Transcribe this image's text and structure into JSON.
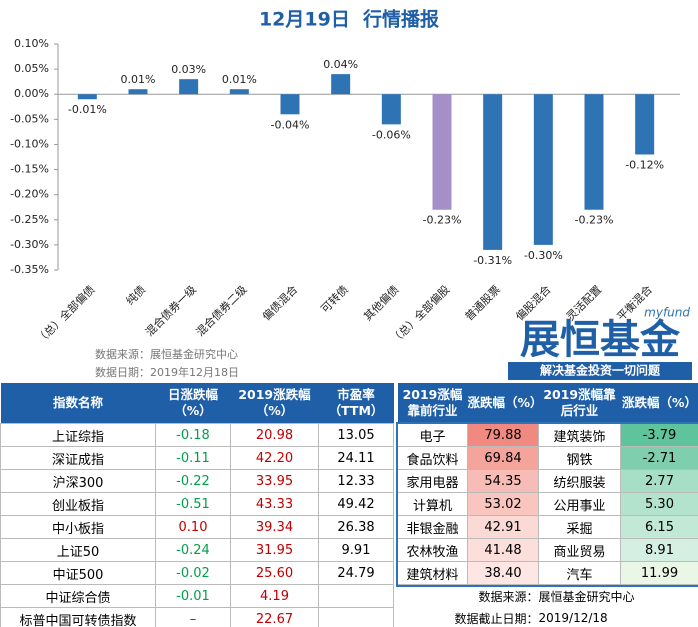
{
  "chart_data": {
    "type": "bar",
    "title": "12月19日  行情播报",
    "categories": [
      "（总）全部偏债",
      "纯债",
      "混合债券一级",
      "混合债券二级",
      "偏债混合",
      "可转债",
      "其他偏债",
      "（总）全部偏股",
      "普通股票",
      "偏股混合",
      "灵活配置",
      "平衡混合"
    ],
    "values": [
      -0.01,
      0.01,
      0.03,
      0.01,
      -0.04,
      0.04,
      -0.06,
      -0.23,
      -0.31,
      -0.3,
      -0.23,
      -0.12
    ],
    "value_labels": [
      "-0.01%",
      "0.01%",
      "0.03%",
      "0.01%",
      "-0.04%",
      "0.04%",
      "-0.06%",
      "-0.23%",
      "-0.31%",
      "-0.30%",
      "-0.23%",
      "-0.12%"
    ],
    "colors": [
      "#2e74b5",
      "#2e74b5",
      "#2e74b5",
      "#2e74b5",
      "#2e74b5",
      "#2e74b5",
      "#2e74b5",
      "#a48fc9",
      "#2e74b5",
      "#2e74b5",
      "#2e74b5",
      "#2e74b5"
    ],
    "ylim": [
      -0.35,
      0.1
    ],
    "yticks": [
      {
        "value": 0.1,
        "label": "0.10%"
      },
      {
        "value": 0.05,
        "label": "0.05%"
      },
      {
        "value": 0,
        "label": "0.00%"
      },
      {
        "value": -0.05,
        "label": "-0.05%"
      },
      {
        "value": -0.1,
        "label": "-0.10%"
      },
      {
        "value": -0.15,
        "label": "-0.15%"
      },
      {
        "value": -0.2,
        "label": "-0.20%"
      },
      {
        "value": -0.25,
        "label": "-0.25%"
      },
      {
        "value": -0.3,
        "label": "-0.30%"
      },
      {
        "value": -0.35,
        "label": "-0.35%"
      }
    ],
    "grid": false
  },
  "source": "数据来源：展恒基金研究中心",
  "date": "数据日期：2019年12月18日",
  "logo": {
    "brand": "myfund",
    "name": "展恒基金",
    "slogan": "解决基金投资一切问题"
  },
  "index_table": {
    "headers": [
      "指数名称",
      "日涨跌幅（%）",
      "2019涨跌幅（%）",
      "市盈率（TTM）"
    ],
    "rows": [
      [
        "上证综指",
        "-0.18",
        "20.98",
        "13.05"
      ],
      [
        "深证成指",
        "-0.11",
        "42.20",
        "24.11"
      ],
      [
        "沪深300",
        "-0.22",
        "33.95",
        "12.33"
      ],
      [
        "创业板指",
        "-0.51",
        "43.33",
        "49.42"
      ],
      [
        "中小板指",
        "0.10",
        "39.34",
        "26.38"
      ],
      [
        "上证50",
        "-0.24",
        "31.95",
        "9.91"
      ],
      [
        "中证500",
        "-0.02",
        "25.60",
        "24.79"
      ],
      [
        "中证综合债",
        "-0.01",
        "4.19"
      ],
      [
        "标普中国可转债指数",
        "–",
        "22.67"
      ]
    ]
  },
  "industry_table": {
    "headers": [
      "2019涨幅靠前行业",
      "涨跌幅（%）",
      "2019涨幅靠后行业",
      "涨跌幅（%）"
    ],
    "rows": [
      [
        "电子",
        "79.88",
        "建筑装饰",
        "-3.79"
      ],
      [
        "食品饮料",
        "69.84",
        "钢铁",
        "-2.71"
      ],
      [
        "家用电器",
        "54.35",
        "纺织服装",
        "2.77"
      ],
      [
        "计算机",
        "53.02",
        "公用事业",
        "5.30"
      ],
      [
        "非银金融",
        "42.91",
        "采掘",
        "6.15"
      ],
      [
        "农林牧渔",
        "41.48",
        "商业贸易",
        "8.91"
      ],
      [
        "建筑材料",
        "38.40",
        "汽车",
        "11.99"
      ]
    ],
    "notes": [
      {
        "label": "数据来源：",
        "value": "展恒基金研究中心"
      },
      {
        "label": "数据截止日期：",
        "value": "2019/12/18"
      }
    ]
  }
}
